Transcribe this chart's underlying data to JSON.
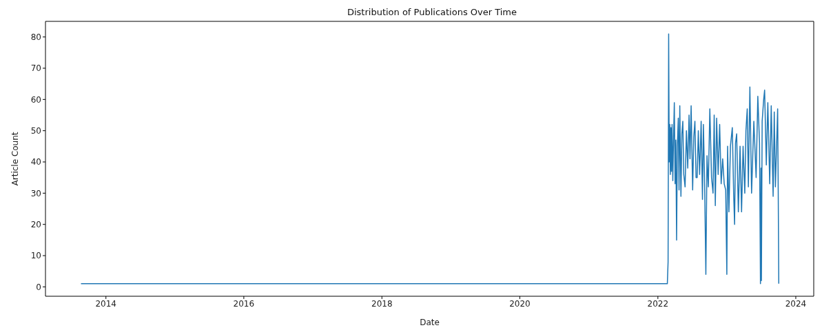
{
  "chart_data": {
    "type": "line",
    "title": "Distribution of Publications Over Time",
    "xlabel": "Date",
    "ylabel": "Article Count",
    "xlim": [
      "2013-02-15",
      "2024-04-05"
    ],
    "xticks": [
      "2014",
      "2016",
      "2018",
      "2020",
      "2022",
      "2024"
    ],
    "ylim": [
      -3,
      85
    ],
    "yticks": [
      0,
      10,
      20,
      30,
      40,
      50,
      60,
      70,
      80
    ],
    "grid": false,
    "marker": "none",
    "line_style": "solid",
    "series": [
      {
        "color": "#1f77b4",
        "x": [
          "2013-08-22",
          "2022-02-20",
          "2022-02-24",
          "2022-02-27",
          "2022-03-02",
          "2022-03-05",
          "2022-03-08",
          "2022-03-11",
          "2022-03-14",
          "2022-03-17",
          "2022-03-21",
          "2022-03-25",
          "2022-03-29",
          "2022-04-02",
          "2022-04-06",
          "2022-04-10",
          "2022-04-14",
          "2022-04-19",
          "2022-04-23",
          "2022-04-27",
          "2022-05-03",
          "2022-05-08",
          "2022-05-13",
          "2022-05-18",
          "2022-05-25",
          "2022-06-01",
          "2022-06-08",
          "2022-06-15",
          "2022-06-20",
          "2022-06-26",
          "2022-07-04",
          "2022-07-10",
          "2022-07-16",
          "2022-07-22",
          "2022-07-28",
          "2022-08-03",
          "2022-08-10",
          "2022-08-18",
          "2022-08-25",
          "2022-08-30",
          "2022-09-05",
          "2022-09-12",
          "2022-09-18",
          "2022-09-25",
          "2022-10-03",
          "2022-10-12",
          "2022-10-20",
          "2022-10-26",
          "2022-11-01",
          "2022-11-08",
          "2022-11-16",
          "2022-11-24",
          "2022-12-02",
          "2022-12-10",
          "2022-12-18",
          "2022-12-26",
          "2023-01-01",
          "2023-01-05",
          "2023-01-12",
          "2023-01-20",
          "2023-01-30",
          "2023-02-06",
          "2023-02-11",
          "2023-02-16",
          "2023-02-22",
          "2023-03-03",
          "2023-03-12",
          "2023-03-20",
          "2023-03-28",
          "2023-04-06",
          "2023-04-12",
          "2023-04-19",
          "2023-04-25",
          "2023-05-03",
          "2023-05-12",
          "2023-05-24",
          "2023-06-05",
          "2023-06-14",
          "2023-06-23",
          "2023-06-28",
          "2023-07-01",
          "2023-07-03",
          "2023-07-07",
          "2023-07-15",
          "2023-07-20",
          "2023-07-29",
          "2023-08-06",
          "2023-08-16",
          "2023-08-24",
          "2023-09-03",
          "2023-09-09",
          "2023-09-15",
          "2023-09-27",
          "2023-09-30",
          "2023-10-03"
        ],
        "values": [
          1,
          1,
          8,
          81,
          40,
          52,
          36,
          51,
          37,
          52,
          34,
          48,
          59,
          33,
          47,
          15,
          45,
          54,
          31,
          58,
          29,
          49,
          53,
          36,
          32,
          50,
          38,
          55,
          41,
          58,
          31,
          48,
          53,
          35,
          35,
          50,
          36,
          53,
          28,
          52,
          35,
          4,
          42,
          32,
          57,
          35,
          30,
          55,
          26,
          54,
          36,
          52,
          33,
          41,
          33,
          31,
          4,
          45,
          24,
          45,
          51,
          30,
          20,
          46,
          49,
          24,
          45,
          24,
          45,
          30,
          50,
          57,
          32,
          64,
          30,
          53,
          35,
          61,
          46,
          1,
          38,
          2,
          53,
          60,
          63,
          39,
          59,
          33,
          58,
          29,
          56,
          32,
          57,
          31,
          1
        ]
      }
    ]
  }
}
